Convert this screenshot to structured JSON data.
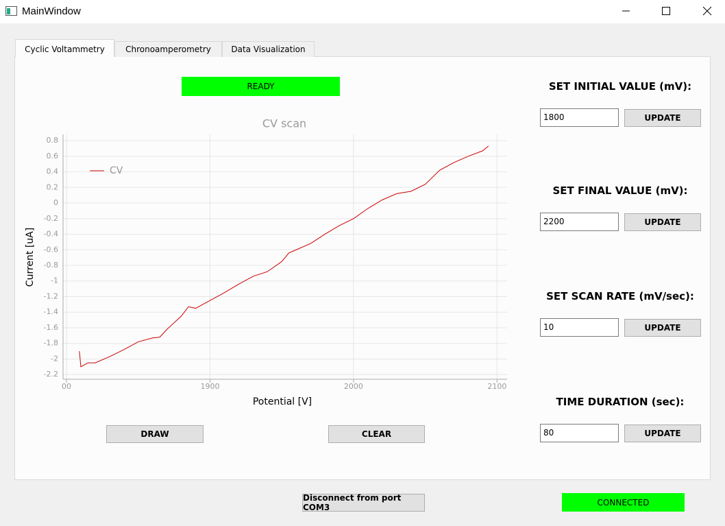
{
  "window": {
    "title": "MainWindow"
  },
  "tabs": [
    "Cyclic Voltammetry",
    "Chronoamperometry",
    "Data Visualization"
  ],
  "status": "READY",
  "chart_data": {
    "type": "line",
    "title": "CV scan",
    "x_label": "Potential [V]",
    "y_label": "Current [uA]",
    "x": [
      1809,
      1810,
      1815,
      1820,
      1830,
      1840,
      1850,
      1860,
      1865,
      1870,
      1880,
      1885,
      1890,
      1900,
      1910,
      1920,
      1930,
      1940,
      1950,
      1955,
      1960,
      1970,
      1980,
      1990,
      2000,
      2010,
      2020,
      2030,
      2040,
      2050,
      2060,
      2070,
      2080,
      2090,
      2094
    ],
    "series": [
      {
        "name": "CV",
        "color": "#cc0000",
        "values": [
          -1.9,
          -2.1,
          -2.05,
          -2.05,
          -1.97,
          -1.88,
          -1.78,
          -1.73,
          -1.72,
          -1.62,
          -1.45,
          -1.33,
          -1.35,
          -1.25,
          -1.15,
          -1.04,
          -0.94,
          -0.88,
          -0.75,
          -0.64,
          -0.6,
          -0.52,
          -0.4,
          -0.29,
          -0.2,
          -0.07,
          0.04,
          0.12,
          0.15,
          0.24,
          0.42,
          0.52,
          0.6,
          0.67,
          0.73
        ]
      }
    ],
    "xlim": [
      1797.6,
      2107
    ],
    "ylim": [
      -2.26,
      0.88
    ],
    "xticks": [
      {
        "value": 1800,
        "label": "00"
      },
      1900,
      2000,
      2100
    ],
    "yticks": [
      0.8,
      0.6,
      0.4,
      0.2,
      0,
      -0.2,
      -0.4,
      -0.6,
      -0.8,
      -1,
      -1.2,
      -1.4,
      -1.6,
      -1.8,
      -2,
      -2.2
    ],
    "grid": true,
    "legend": "upper-left"
  },
  "buttons": {
    "draw": "DRAW",
    "clear": "CLEAR"
  },
  "settings": [
    {
      "label": "SET INITIAL VALUE (mV):",
      "value": "1800",
      "button": "UPDATE"
    },
    {
      "label": "SET FINAL VALUE (mV):",
      "value": "2200",
      "button": "UPDATE"
    },
    {
      "label": "SET SCAN RATE (mV/sec):",
      "value": "10",
      "button": "UPDATE"
    },
    {
      "label": "TIME DURATION (sec):",
      "value": "80",
      "button": "UPDATE"
    }
  ],
  "footer": {
    "disconnect": "Disconnect from port COM3",
    "connection": "CONNECTED"
  }
}
